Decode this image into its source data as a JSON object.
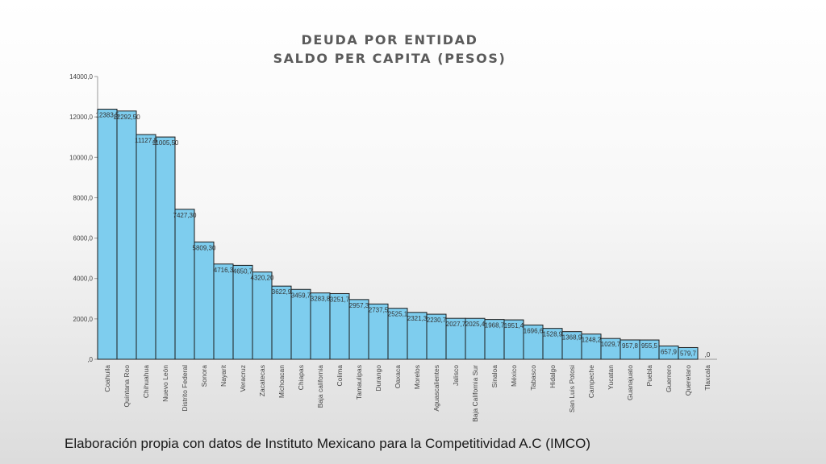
{
  "chart_data": {
    "type": "bar",
    "title_line1": "DEUDA POR ENTIDAD",
    "title_line2": "SALDO PER CAPITA  (PESOS)",
    "xlabel": "",
    "ylabel": "",
    "ylim": [
      0,
      14000
    ],
    "yticks": [
      0,
      2000,
      4000,
      6000,
      8000,
      10000,
      12000,
      14000
    ],
    "ytick_labels": [
      ",0",
      "2000,0",
      "4000,0",
      "6000,0",
      "8000,0",
      "10000,0",
      "12000,0",
      "14000,0"
    ],
    "grid": false,
    "legend": "none",
    "bar_color": "#7ecdee",
    "categories": [
      "Coahuila",
      "Quintana Roo",
      "Chihuahua",
      "Nuevo León",
      "Distrito Federal",
      "Sonora",
      "Nayarit",
      "Veracruz",
      "Zacatecas",
      "Michoacan",
      "Chiapas",
      "Baja california",
      "Colima",
      "Tamaulipas",
      "Durango",
      "Oaxaca",
      "Morelos",
      "Aguascalientes",
      "Jalisco",
      "Baja California Sur",
      "Sinaloa",
      "México",
      "Tabasco",
      "Hidalgo",
      "San Luis Potosi",
      "Campeche",
      "Yucatan",
      "Guanajuato",
      "Puebla",
      "Guerrero",
      "Queretaro",
      "Tlaxcala"
    ],
    "values": [
      12383.5,
      12292.5,
      11127.8,
      11005.5,
      7427.3,
      5809.3,
      4716.3,
      4650.7,
      4320.2,
      3622.9,
      3459.7,
      3283.8,
      3251.7,
      2957.3,
      2737.5,
      2525.1,
      2321.3,
      2230.7,
      2027.7,
      2025.4,
      1968.7,
      1951.4,
      1696.6,
      1528.9,
      1368.9,
      1248.2,
      1029.7,
      957.8,
      955.5,
      657.9,
      579.7,
      0
    ],
    "value_labels": [
      "12383,5",
      "12292,50",
      "11127,8",
      "11005,50",
      "7427,30",
      "5809,30",
      "4716,3",
      "4650,7",
      "4320,20",
      "3622,9",
      "3459,7",
      "3283,8",
      "3251,7",
      "2957,3",
      "2737,5",
      "2525,1",
      "2321,3",
      "2230,7",
      "2027,7",
      "2025,4",
      "1968,7",
      "1951,4",
      "1696,6",
      "1528,9",
      "1368,9",
      "1248,2",
      "1029,7",
      "957,8",
      "955,5",
      "657,9",
      "579,7",
      ",0"
    ]
  },
  "footer": {
    "text": "Elaboración propia con datos de Instituto Mexicano para la Competitividad A.C (IMCO)"
  }
}
